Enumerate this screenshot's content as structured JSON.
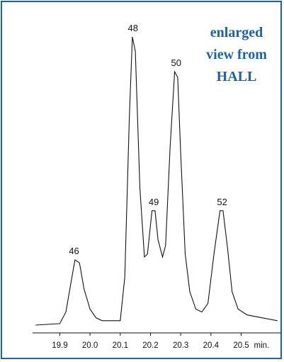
{
  "chart_data": {
    "type": "line",
    "title": "",
    "xlabel": "",
    "ylabel": "",
    "x_unit_label": "min.",
    "xlim": [
      19.81,
      20.63
    ],
    "ylim": [
      0,
      100
    ],
    "xticks": [
      19.9,
      20.0,
      20.1,
      20.2,
      20.3,
      20.4,
      20.5
    ],
    "xtick_labels": [
      "19.9",
      "20.0",
      "20.1",
      "20.2",
      "20.3",
      "20.4",
      "20.5"
    ],
    "grid": false,
    "line_color": "#111111",
    "annotation_color": "#1a63a8",
    "annotation_lines": [
      "enlarged",
      "view from",
      "HALL"
    ],
    "series": [
      {
        "x": [
          19.82,
          19.9,
          19.92,
          19.935,
          19.95,
          19.965,
          19.98,
          20.0,
          20.02,
          20.04,
          20.07,
          20.1,
          20.115,
          20.13,
          20.14,
          20.15,
          20.165,
          20.18,
          20.19,
          20.205,
          20.215,
          20.225,
          20.24,
          20.25,
          20.265,
          20.28,
          20.29,
          20.3,
          20.315,
          20.33,
          20.35,
          20.37,
          20.39,
          20.41,
          20.43,
          20.44,
          20.455,
          20.47,
          20.49,
          20.52,
          20.57,
          20.62
        ],
        "y": [
          0.5,
          1,
          5,
          14,
          23,
          22,
          13,
          6,
          3,
          2,
          2,
          2,
          17,
          72,
          100,
          95,
          48,
          24,
          25,
          40,
          40,
          30,
          24,
          28,
          62,
          88,
          86,
          60,
          25,
          12,
          6,
          5,
          8,
          25,
          40,
          40,
          27,
          12,
          6,
          4,
          3,
          2
        ]
      }
    ],
    "peak_labels": [
      {
        "text": "46",
        "x": 19.947,
        "y": 23
      },
      {
        "text": "48",
        "x": 20.142,
        "y": 100
      },
      {
        "text": "49",
        "x": 20.211,
        "y": 40
      },
      {
        "text": "50",
        "x": 20.285,
        "y": 88
      },
      {
        "text": "52",
        "x": 20.437,
        "y": 40
      }
    ]
  }
}
